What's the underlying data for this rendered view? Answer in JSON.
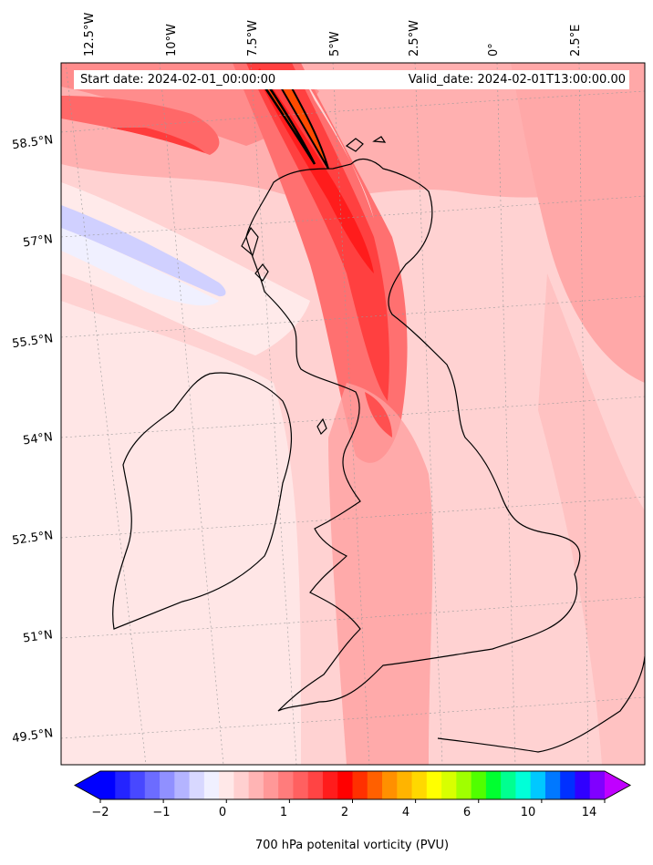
{
  "map": {
    "start_label": "Start date: 2024-02-01_00:00:00",
    "valid_label": "Valid_date: 2024-02-01T13:00:00.00",
    "lon_labels": [
      "12.5°W",
      "10°W",
      "7.5°W",
      "5°W",
      "2.5°W",
      "0°",
      "2.5°E"
    ],
    "lat_labels": [
      "58.5°N",
      "57°N",
      "55.5°N",
      "54°N",
      "52.5°N",
      "51°N",
      "49.5°N"
    ],
    "field": "700 hPa potential vorticity",
    "projection": "conic"
  },
  "colorbar": {
    "label": "700 hPa potenital vorticity (PVU)",
    "ticks": [
      "−2",
      "−1",
      "0",
      "1",
      "2",
      "4",
      "6",
      "10",
      "14"
    ],
    "colors": [
      "#0000ff",
      "#2424ff",
      "#4848ff",
      "#6c6cff",
      "#9090ff",
      "#b4b4ff",
      "#d8d8ff",
      "#f0f0ff",
      "#ffe8e8",
      "#ffd0d0",
      "#ffb4b4",
      "#ff9898",
      "#ff7c7c",
      "#ff6060",
      "#ff4444",
      "#ff1c1c",
      "#ff0000",
      "#ff3000",
      "#ff6000",
      "#ff9000",
      "#ffb400",
      "#ffd800",
      "#ffff00",
      "#d8ff00",
      "#a0ff00",
      "#50ff00",
      "#00ff30",
      "#00ff90",
      "#00ffd8",
      "#00c8ff",
      "#0078ff",
      "#0030ff",
      "#3000ff",
      "#8000ff"
    ],
    "extend_low": "#0000ff",
    "extend_high": "#c000ff"
  }
}
